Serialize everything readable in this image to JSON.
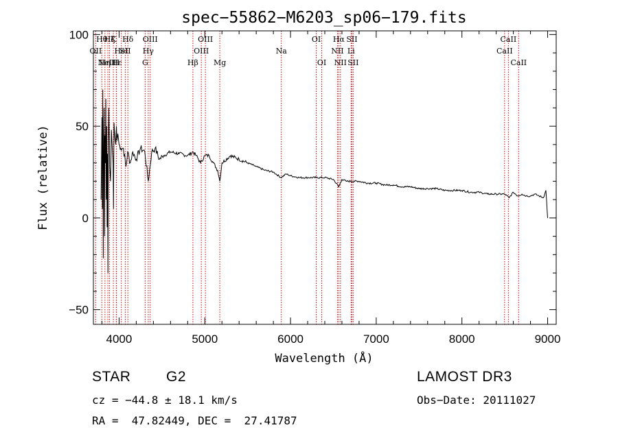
{
  "chart_data": {
    "type": "line",
    "title": "spec−55862−M6203_sp06−179.fits",
    "xlabel": "Wavelength (Å)",
    "ylabel": "Flux (relative)",
    "xlim": [
      3700,
      9100
    ],
    "ylim": [
      -58,
      102
    ],
    "x_ticks": [
      {
        "value": 4000,
        "label": "4000"
      },
      {
        "value": 5000,
        "label": "5000"
      },
      {
        "value": 6000,
        "label": "6000"
      },
      {
        "value": 7000,
        "label": "7000"
      },
      {
        "value": 8000,
        "label": "8000"
      },
      {
        "value": 9000,
        "label": "9000"
      }
    ],
    "y_ticks": [
      {
        "value": 100,
        "label": "100"
      },
      {
        "value": 50,
        "label": "50"
      },
      {
        "value": 0,
        "label": "0"
      },
      {
        "value": -50,
        "label": "−50"
      }
    ],
    "series": [
      {
        "name": "flux",
        "x": [
          3790,
          3800,
          3805,
          3810,
          3815,
          3820,
          3825,
          3830,
          3835,
          3840,
          3845,
          3850,
          3855,
          3860,
          3865,
          3870,
          3875,
          3880,
          3890,
          3900,
          3910,
          3920,
          3930,
          3935,
          3940,
          3950,
          3960,
          3968,
          3975,
          3985,
          4000,
          4020,
          4050,
          4080,
          4100,
          4130,
          4160,
          4200,
          4250,
          4300,
          4340,
          4380,
          4420,
          4470,
          4520,
          4600,
          4700,
          4800,
          4861,
          4900,
          4950,
          5000,
          5050,
          5100,
          5150,
          5175,
          5200,
          5300,
          5400,
          5500,
          5600,
          5700,
          5800,
          5890,
          5950,
          6000,
          6100,
          6200,
          6300,
          6400,
          6500,
          6563,
          6600,
          6650,
          6700,
          6800,
          6900,
          7000,
          7100,
          7200,
          7300,
          7400,
          7500,
          7600,
          7700,
          7800,
          7900,
          8000,
          8100,
          8200,
          8300,
          8400,
          8500,
          8550,
          8600,
          8650,
          8700,
          8750,
          8800,
          8850,
          8900,
          8950,
          8980,
          9000
        ],
        "y": [
          10,
          55,
          5,
          70,
          -22,
          40,
          60,
          -10,
          45,
          30,
          65,
          10,
          50,
          -5,
          35,
          -30,
          42,
          60,
          28,
          20,
          48,
          38,
          30,
          5,
          52,
          44,
          40,
          50,
          42,
          46,
          40,
          38,
          38,
          28,
          36,
          30,
          36,
          32,
          38,
          36,
          20,
          36,
          38,
          32,
          34,
          36,
          35,
          34,
          36,
          34,
          30,
          34,
          34,
          30,
          26,
          20,
          30,
          34,
          32,
          30,
          28,
          26,
          25,
          22,
          24,
          23,
          22,
          22,
          22,
          22,
          21,
          17,
          21,
          20,
          20,
          20,
          19,
          19,
          18,
          18,
          17,
          17,
          16,
          16,
          16,
          15,
          15,
          15,
          14,
          14,
          13,
          13,
          13,
          11,
          14,
          12,
          13,
          12,
          12,
          13,
          12,
          11,
          15,
          0
        ]
      }
    ],
    "emission_lines": [
      {
        "wavelength": 3727,
        "label": "OII",
        "row": 2
      },
      {
        "wavelength": 3798,
        "label": "Hθ",
        "row": 1
      },
      {
        "wavelength": 3835,
        "label": "Hη",
        "row": 3
      },
      {
        "wavelength": 3869,
        "label": "NeIII",
        "row": 3
      },
      {
        "wavelength": 3889,
        "label": "Hζ",
        "row": 1
      },
      {
        "wavelength": 3933,
        "label": "K",
        "row": 1
      },
      {
        "wavelength": 3968,
        "label": "H",
        "row": 3
      },
      {
        "wavelength": 3970,
        "label": "Hε",
        "row": 3
      },
      {
        "wavelength": 4026,
        "label": "HeI",
        "row": 2
      },
      {
        "wavelength": 4072,
        "label": "SII",
        "row": 2
      },
      {
        "wavelength": 4102,
        "label": "Hδ",
        "row": 1
      },
      {
        "wavelength": 4304,
        "label": "G",
        "row": 3
      },
      {
        "wavelength": 4340,
        "label": "Hγ",
        "row": 2
      },
      {
        "wavelength": 4363,
        "label": "OIII",
        "row": 1
      },
      {
        "wavelength": 4861,
        "label": "Hβ",
        "row": 3
      },
      {
        "wavelength": 4959,
        "label": "OIII",
        "row": 2
      },
      {
        "wavelength": 5007,
        "label": "OIII",
        "row": 1
      },
      {
        "wavelength": 5175,
        "label": "Mg",
        "row": 3
      },
      {
        "wavelength": 5893,
        "label": "Na",
        "row": 2
      },
      {
        "wavelength": 6300,
        "label": "OI",
        "row": 1
      },
      {
        "wavelength": 6364,
        "label": "OI",
        "row": 3
      },
      {
        "wavelength": 6548,
        "label": "NII",
        "row": 2
      },
      {
        "wavelength": 6563,
        "label": "Hα",
        "row": 1
      },
      {
        "wavelength": 6583,
        "label": "NII",
        "row": 3
      },
      {
        "wavelength": 6707,
        "label": "Li",
        "row": 2
      },
      {
        "wavelength": 6716,
        "label": "SII",
        "row": 1
      },
      {
        "wavelength": 6731,
        "label": "SII",
        "row": 3
      },
      {
        "wavelength": 8498,
        "label": "CaII",
        "row": 2
      },
      {
        "wavelength": 8542,
        "label": "CaII",
        "row": 1
      },
      {
        "wavelength": 8662,
        "label": "CaII",
        "row": 3
      }
    ]
  },
  "info": {
    "class": "STAR",
    "subclass": "G2",
    "survey": "LAMOST DR3",
    "redshift": "cz = −44.8 ± 18.1 km/s",
    "obs_date": "Obs−Date: 20111027",
    "coords": "RA =  47.82449, DEC =  27.41787"
  },
  "colors": {
    "line_marker": "#cc0000",
    "axes": "#000000",
    "spectrum": "#000000"
  }
}
